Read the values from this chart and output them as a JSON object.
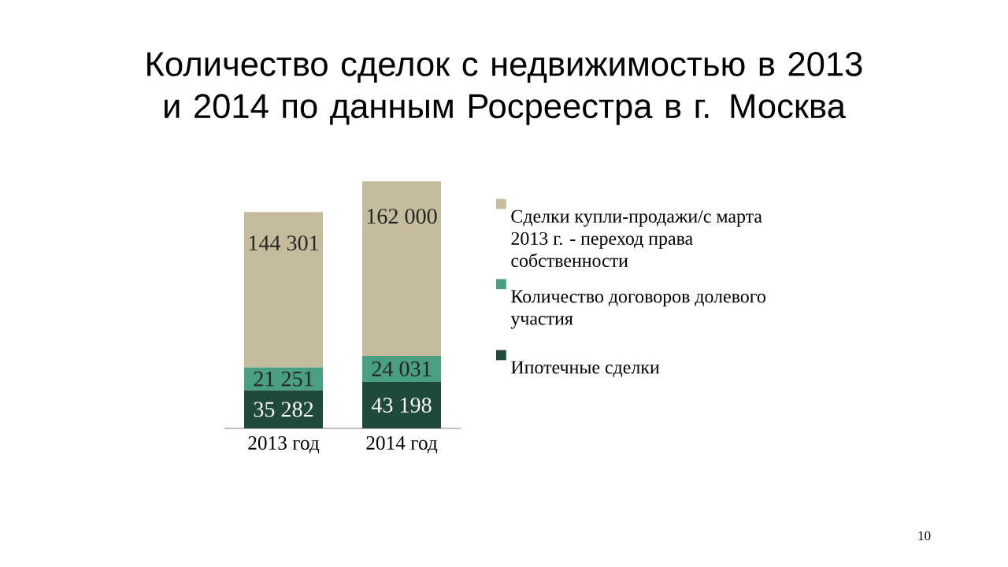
{
  "chart_data": {
    "type": "bar",
    "stacked": true,
    "title": "Количество сделок с недвижимостью в 2013 и 2014 по данным Росреестра в г. Москва",
    "categories": [
      "2013 год",
      "2014 год"
    ],
    "legend": "right",
    "series": [
      {
        "name": "Ипотечные сделки",
        "color": "#1f4a3a",
        "values": [
          35282,
          43198
        ],
        "value_labels": [
          "35 282",
          "43 198"
        ]
      },
      {
        "name": "Количество договоров долевого участия",
        "color": "#4a9e82",
        "values": [
          21251,
          24031
        ],
        "value_labels": [
          "21 251",
          "24 031"
        ]
      },
      {
        "name": "Сделки купли-продажи/с марта 2013 г. - переход права собственности",
        "color": "#c4bc9c",
        "values": [
          144301,
          162000
        ],
        "value_labels": [
          "144 301",
          "162 000"
        ]
      }
    ],
    "annotations": [
      "10"
    ]
  }
}
